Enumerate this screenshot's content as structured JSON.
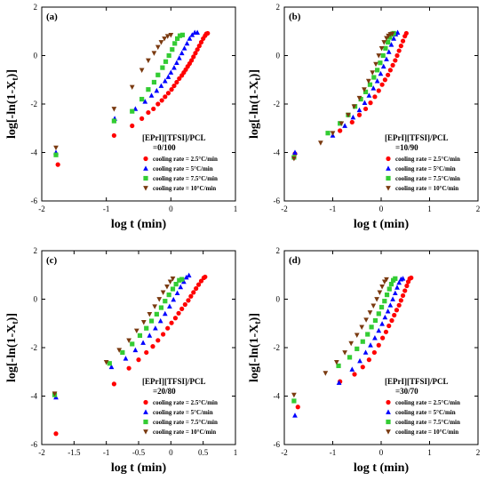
{
  "colors": {
    "red": "#ff0000",
    "blue": "#0000ff",
    "green": "#33cc33",
    "brown": "#7a3a10"
  },
  "legend_entries": [
    "cooling rate = 2.5°C/min",
    "cooling rate = 5°C/min",
    "cooling rate = 7.5°C/min",
    "cooling rate = 10°C/min"
  ],
  "chart_data": [
    {
      "panel": "(a)",
      "type": "scatter",
      "xlabel": "log t (min)",
      "ylabel": "log[-ln(1-X",
      "ylabel_sub": "t",
      "ylabel_tail": ")]",
      "xlim": [
        -2,
        1
      ],
      "ylim": [
        -6,
        2
      ],
      "xticks": [
        "-2",
        "-1",
        "0",
        "1"
      ],
      "xtick_values": [
        -2,
        -1,
        0,
        1
      ],
      "yticks": [
        "-6",
        "-4",
        "-2",
        "0",
        "2"
      ],
      "ytick_values": [
        -6,
        -4,
        -2,
        0,
        2
      ],
      "legend_title": [
        "[EPrI][TFSI]/PCL",
        "=0/100"
      ],
      "series": [
        {
          "name": "cooling rate = 2.5°C/min",
          "marker": "circle",
          "color": "#ff0000",
          "x": [
            -1.75,
            -0.88,
            -0.6,
            -0.45,
            -0.35,
            -0.27,
            -0.2,
            -0.14,
            -0.09,
            -0.04,
            0.01,
            0.05,
            0.09,
            0.13,
            0.17,
            0.2,
            0.23,
            0.26,
            0.29,
            0.32,
            0.35,
            0.38,
            0.41,
            0.44,
            0.47,
            0.5,
            0.53,
            0.55,
            0.57
          ],
          "y": [
            -4.5,
            -3.3,
            -2.9,
            -2.6,
            -2.35,
            -2.2,
            -2.0,
            -1.85,
            -1.7,
            -1.55,
            -1.4,
            -1.25,
            -1.1,
            -0.95,
            -0.82,
            -0.7,
            -0.58,
            -0.45,
            -0.33,
            -0.2,
            -0.05,
            0.1,
            0.25,
            0.4,
            0.55,
            0.7,
            0.82,
            0.9,
            0.92
          ]
        },
        {
          "name": "cooling rate = 5°C/min",
          "marker": "triangle-up",
          "color": "#0000ff",
          "x": [
            -1.78,
            -0.87,
            -0.55,
            -0.4,
            -0.3,
            -0.22,
            -0.15,
            -0.09,
            -0.04,
            0.0,
            0.05,
            0.09,
            0.13,
            0.17,
            0.21,
            0.25,
            0.29,
            0.33,
            0.37,
            0.41
          ],
          "y": [
            -4.0,
            -2.6,
            -2.2,
            -1.9,
            -1.65,
            -1.45,
            -1.25,
            -1.05,
            -0.88,
            -0.7,
            -0.5,
            -0.3,
            -0.1,
            0.1,
            0.3,
            0.5,
            0.7,
            0.85,
            0.95,
            0.95
          ]
        },
        {
          "name": "cooling rate = 7.5°C/min",
          "marker": "square",
          "color": "#33cc33",
          "x": [
            -1.78,
            -0.88,
            -0.6,
            -0.45,
            -0.35,
            -0.26,
            -0.2,
            -0.13,
            -0.08,
            -0.03,
            0.02,
            0.06,
            0.1,
            0.14,
            0.18
          ],
          "y": [
            -4.1,
            -2.7,
            -2.3,
            -1.8,
            -1.4,
            -1.1,
            -0.8,
            -0.5,
            -0.25,
            0.0,
            0.25,
            0.5,
            0.7,
            0.82,
            0.85
          ]
        },
        {
          "name": "cooling rate = 10°C/min",
          "marker": "triangle-down",
          "color": "#7a3a10",
          "x": [
            -1.78,
            -0.88,
            -0.6,
            -0.45,
            -0.35,
            -0.26,
            -0.2,
            -0.15,
            -0.1,
            -0.05,
            0.0
          ],
          "y": [
            -3.8,
            -2.2,
            -1.3,
            -0.6,
            -0.2,
            0.1,
            0.35,
            0.55,
            0.7,
            0.8,
            0.85
          ]
        }
      ]
    },
    {
      "panel": "(b)",
      "type": "scatter",
      "xlabel": "log t (min)",
      "ylabel": "log[-ln(1-X",
      "ylabel_sub": "t",
      "ylabel_tail": ")]",
      "xlim": [
        -2,
        2
      ],
      "ylim": [
        -6,
        2
      ],
      "xticks": [
        "-2",
        "-1",
        "0",
        "1",
        "2"
      ],
      "xtick_values": [
        -2,
        -1,
        0,
        1,
        2
      ],
      "yticks": [
        "-6",
        "-4",
        "-2",
        "0",
        "2"
      ],
      "ytick_values": [
        -6,
        -4,
        -2,
        0,
        2
      ],
      "legend_title": [
        "[EPrI][TFSI]/PCL",
        "=10/90"
      ],
      "series": [
        {
          "name": "cooling rate = 2.5°C/min",
          "marker": "circle",
          "color": "#ff0000",
          "x": [
            -1.78,
            -0.85,
            -0.6,
            -0.45,
            -0.32,
            -0.22,
            -0.13,
            -0.05,
            0.02,
            0.08,
            0.14,
            0.19,
            0.24,
            0.29,
            0.33,
            0.37,
            0.41,
            0.45,
            0.49,
            0.52
          ],
          "y": [
            -4.05,
            -3.1,
            -2.75,
            -2.45,
            -2.2,
            -1.95,
            -1.7,
            -1.45,
            -1.2,
            -1.0,
            -0.8,
            -0.6,
            -0.4,
            -0.2,
            0.0,
            0.2,
            0.4,
            0.6,
            0.8,
            0.92
          ]
        },
        {
          "name": "cooling rate = 5°C/min",
          "marker": "triangle-up",
          "color": "#0000ff",
          "x": [
            -1.78,
            -1.0,
            -0.75,
            -0.58,
            -0.45,
            -0.34,
            -0.25,
            -0.16,
            -0.08,
            -0.01,
            0.05,
            0.11,
            0.16,
            0.21,
            0.26,
            0.3,
            0.34
          ],
          "y": [
            -4.0,
            -3.3,
            -2.9,
            -2.55,
            -2.25,
            -1.95,
            -1.65,
            -1.35,
            -1.05,
            -0.75,
            -0.45,
            -0.15,
            0.15,
            0.45,
            0.7,
            0.88,
            0.95
          ]
        },
        {
          "name": "cooling rate = 7.5°C/min",
          "marker": "square",
          "color": "#33cc33",
          "x": [
            -1.8,
            -1.1,
            -0.85,
            -0.68,
            -0.54,
            -0.42,
            -0.32,
            -0.23,
            -0.15,
            -0.08,
            -0.02,
            0.04,
            0.09,
            0.14,
            0.18,
            0.22,
            0.26
          ],
          "y": [
            -4.2,
            -3.2,
            -2.8,
            -2.45,
            -2.1,
            -1.8,
            -1.5,
            -1.2,
            -0.9,
            -0.6,
            -0.3,
            0.0,
            0.3,
            0.55,
            0.75,
            0.88,
            0.92
          ]
        },
        {
          "name": "cooling rate = 10°C/min",
          "marker": "triangle-down",
          "color": "#7a3a10",
          "x": [
            -1.8,
            -1.25,
            -1.0,
            -0.82,
            -0.68,
            -0.56,
            -0.45,
            -0.35,
            -0.26,
            -0.18,
            -0.11,
            -0.05,
            0.01,
            0.06,
            0.11,
            0.15,
            0.19,
            0.23
          ],
          "y": [
            -4.25,
            -3.6,
            -3.2,
            -2.8,
            -2.45,
            -2.1,
            -1.75,
            -1.4,
            -1.05,
            -0.7,
            -0.35,
            0.0,
            0.3,
            0.55,
            0.72,
            0.82,
            0.88,
            0.9
          ]
        }
      ]
    },
    {
      "panel": "(c)",
      "type": "scatter",
      "xlabel": "log t (min)",
      "ylabel": "log[-ln(1-X",
      "ylabel_sub": "t",
      "ylabel_tail": ")]",
      "xlim": [
        -2,
        1
      ],
      "ylim": [
        -6,
        2
      ],
      "xticks": [
        "-2",
        "-1.5",
        "-1",
        "-0.5",
        "0",
        "0.5",
        "1"
      ],
      "xtick_values": [
        -2,
        -1.5,
        -1,
        -0.5,
        0,
        0.5,
        1
      ],
      "yticks": [
        "-6",
        "-4",
        "-2",
        "0",
        "2"
      ],
      "ytick_values": [
        -6,
        -4,
        -2,
        0,
        2
      ],
      "legend_title": [
        "[EPrI][TFSI]/PCL",
        "=20/80"
      ],
      "series": [
        {
          "name": "cooling rate = 2.5°C/min",
          "marker": "circle",
          "color": "#ff0000",
          "x": [
            -1.78,
            -0.88,
            -0.65,
            -0.5,
            -0.38,
            -0.28,
            -0.2,
            -0.12,
            -0.05,
            0.01,
            0.07,
            0.12,
            0.17,
            0.22,
            0.27,
            0.31,
            0.35,
            0.39,
            0.43,
            0.47,
            0.51,
            0.53
          ],
          "y": [
            -5.55,
            -3.5,
            -2.85,
            -2.5,
            -2.2,
            -1.95,
            -1.7,
            -1.45,
            -1.2,
            -0.98,
            -0.78,
            -0.58,
            -0.4,
            -0.22,
            -0.05,
            0.12,
            0.28,
            0.44,
            0.6,
            0.75,
            0.88,
            0.92
          ]
        },
        {
          "name": "cooling rate = 5°C/min",
          "marker": "triangle-up",
          "color": "#0000ff",
          "x": [
            -1.78,
            -0.92,
            -0.7,
            -0.55,
            -0.43,
            -0.33,
            -0.24,
            -0.16,
            -0.09,
            -0.02,
            0.04,
            0.1,
            0.15,
            0.2,
            0.24,
            0.28
          ],
          "y": [
            -4.05,
            -2.8,
            -2.45,
            -2.1,
            -1.8,
            -1.5,
            -1.2,
            -0.9,
            -0.6,
            -0.3,
            -0.02,
            0.25,
            0.5,
            0.72,
            0.9,
            0.98
          ]
        },
        {
          "name": "cooling rate = 7.5°C/min",
          "marker": "square",
          "color": "#33cc33",
          "x": [
            -1.8,
            -0.95,
            -0.75,
            -0.6,
            -0.48,
            -0.38,
            -0.3,
            -0.22,
            -0.15,
            -0.09,
            -0.03,
            0.03,
            0.08,
            0.13,
            0.17
          ],
          "y": [
            -3.95,
            -2.65,
            -2.2,
            -1.85,
            -1.5,
            -1.2,
            -0.9,
            -0.62,
            -0.35,
            -0.08,
            0.18,
            0.42,
            0.62,
            0.78,
            0.82
          ]
        },
        {
          "name": "cooling rate = 10°C/min",
          "marker": "triangle-down",
          "color": "#7a3a10",
          "x": [
            -1.8,
            -1.0,
            -0.8,
            -0.65,
            -0.53,
            -0.42,
            -0.33,
            -0.25,
            -0.18,
            -0.12,
            -0.06,
            -0.01,
            0.03
          ],
          "y": [
            -3.9,
            -2.6,
            -2.1,
            -1.7,
            -1.3,
            -0.95,
            -0.62,
            -0.3,
            0.0,
            0.28,
            0.52,
            0.72,
            0.85
          ]
        }
      ]
    },
    {
      "panel": "(d)",
      "type": "scatter",
      "xlabel": "log t (min)",
      "ylabel": "log[-ln(1-X",
      "ylabel_sub": "t",
      "ylabel_tail": ")]",
      "xlim": [
        -2,
        2
      ],
      "ylim": [
        -6,
        2
      ],
      "xticks": [
        "-2",
        "-1",
        "0",
        "1",
        "2"
      ],
      "xtick_values": [
        -2,
        -1,
        0,
        1,
        2
      ],
      "yticks": [
        "-6",
        "-4",
        "-2",
        "0",
        "2"
      ],
      "ytick_values": [
        -6,
        -4,
        -2,
        0,
        2
      ],
      "legend_title": [
        "[EPrI][TFSI]/PCL",
        "=30/70"
      ],
      "series": [
        {
          "name": "cooling rate = 2.5°C/min",
          "marker": "circle",
          "color": "#ff0000",
          "x": [
            -1.72,
            -0.85,
            -0.55,
            -0.38,
            -0.25,
            -0.14,
            -0.05,
            0.03,
            0.1,
            0.16,
            0.22,
            0.27,
            0.32,
            0.37,
            0.41,
            0.45,
            0.49,
            0.53,
            0.56,
            0.59,
            0.62
          ],
          "y": [
            -4.45,
            -3.4,
            -3.1,
            -2.8,
            -2.5,
            -2.2,
            -1.9,
            -1.6,
            -1.35,
            -1.1,
            -0.88,
            -0.66,
            -0.45,
            -0.25,
            -0.05,
            0.15,
            0.35,
            0.55,
            0.72,
            0.85,
            0.88
          ]
        },
        {
          "name": "cooling rate = 5°C/min",
          "marker": "triangle-up",
          "color": "#0000ff",
          "x": [
            -1.78,
            -0.87,
            -0.6,
            -0.44,
            -0.32,
            -0.22,
            -0.13,
            -0.05,
            0.02,
            0.08,
            0.14,
            0.19,
            0.24,
            0.29,
            0.33,
            0.37,
            0.41,
            0.45
          ],
          "y": [
            -4.8,
            -3.45,
            -2.9,
            -2.55,
            -2.2,
            -1.9,
            -1.6,
            -1.3,
            -1.02,
            -0.75,
            -0.5,
            -0.25,
            0.0,
            0.25,
            0.48,
            0.68,
            0.82,
            0.85
          ]
        },
        {
          "name": "cooling rate = 7.5°C/min",
          "marker": "square",
          "color": "#33cc33",
          "x": [
            -1.8,
            -0.88,
            -0.65,
            -0.5,
            -0.38,
            -0.28,
            -0.2,
            -0.12,
            -0.05,
            0.01,
            0.07,
            0.12,
            0.17,
            0.21,
            0.25,
            0.29
          ],
          "y": [
            -4.2,
            -2.75,
            -2.4,
            -2.05,
            -1.75,
            -1.45,
            -1.15,
            -0.88,
            -0.6,
            -0.33,
            -0.08,
            0.18,
            0.42,
            0.62,
            0.78,
            0.85
          ]
        },
        {
          "name": "cooling rate = 10°C/min",
          "marker": "triangle-down",
          "color": "#7a3a10",
          "x": [
            -1.8,
            -1.15,
            -0.92,
            -0.75,
            -0.62,
            -0.5,
            -0.4,
            -0.31,
            -0.23,
            -0.16,
            -0.09,
            -0.03,
            0.02,
            0.07,
            0.11
          ],
          "y": [
            -3.95,
            -3.05,
            -2.6,
            -2.2,
            -1.82,
            -1.48,
            -1.15,
            -0.85,
            -0.55,
            -0.27,
            0.0,
            0.28,
            0.52,
            0.72,
            0.82
          ]
        }
      ]
    }
  ]
}
